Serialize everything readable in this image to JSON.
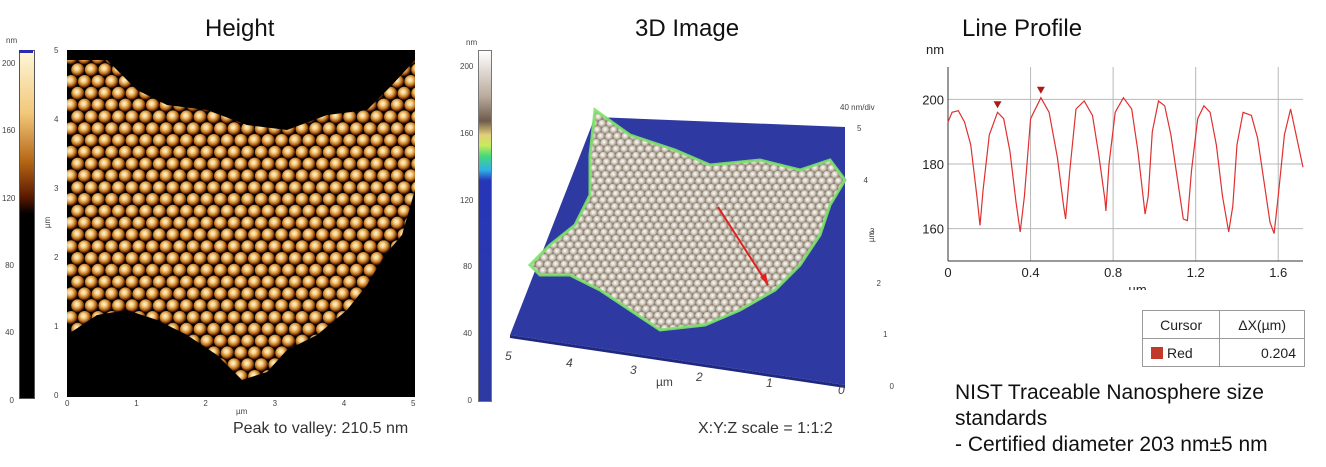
{
  "panels": {
    "height": {
      "title": "Height",
      "colorbar_unit": "nm",
      "colorbar_ticks": [
        "200",
        "160",
        "120",
        "80",
        "40",
        "0"
      ],
      "y_axis_label": "µm",
      "y_ticks": [
        "5",
        "4",
        "3",
        "2",
        "1",
        "0"
      ],
      "x_ticks": [
        "0",
        "1",
        "2",
        "3",
        "4",
        "5"
      ],
      "x_axis_label": "µm",
      "caption": "Peak to valley: 210.5 nm",
      "colors": {
        "low": "#000000",
        "mid": "#7a2c00",
        "high": "#fff1c9"
      }
    },
    "image3d": {
      "title": "3D Image",
      "colorbar_unit": "nm",
      "colorbar_ticks": [
        "200",
        "160",
        "120",
        "80",
        "40",
        "0"
      ],
      "z_scale_label": "40 nm/div",
      "y_axis_label": "µm",
      "y_ticks": [
        "5",
        "4",
        "3",
        "2",
        "1",
        "0"
      ],
      "x_axis_label": "µm",
      "x_ticks": [
        "5",
        "4",
        "3",
        "2",
        "1",
        "0"
      ],
      "caption": "X:Y:Z scale = 1:1:2",
      "colors": {
        "substrate": "#2e3aa2",
        "sphere": "#c9bfb3",
        "edge": "#7ee36a",
        "marker": "#e02020"
      }
    },
    "line_profile": {
      "title": "Line Profile",
      "cursor_table": {
        "headers": [
          "Cursor",
          "ΔX(µm)"
        ],
        "rows": [
          {
            "name": "Red",
            "value": "0.204",
            "color": "#c0392b"
          }
        ]
      }
    }
  },
  "chart_data": {
    "type": "line",
    "title": "Line Profile",
    "xlabel": "µm",
    "ylabel": "nm",
    "xlim": [
      0,
      1.72
    ],
    "ylim": [
      150,
      210
    ],
    "x_ticks": [
      0,
      0.4,
      0.8,
      1.2,
      1.6
    ],
    "y_ticks": [
      160,
      180,
      200
    ],
    "grid": true,
    "line_color": "#e03030",
    "series": [
      {
        "x": [
          0,
          0.02,
          0.05,
          0.08,
          0.11,
          0.14,
          0.155,
          0.17,
          0.2,
          0.24,
          0.27,
          0.3,
          0.33,
          0.35,
          0.37,
          0.4,
          0.45,
          0.49,
          0.53,
          0.56,
          0.57,
          0.59,
          0.62,
          0.66,
          0.7,
          0.73,
          0.76,
          0.765,
          0.78,
          0.81,
          0.85,
          0.89,
          0.92,
          0.955,
          0.97,
          0.99,
          1.02,
          1.05,
          1.08,
          1.11,
          1.14,
          1.16,
          1.18,
          1.21,
          1.24,
          1.27,
          1.3,
          1.33,
          1.36,
          1.38,
          1.4,
          1.43,
          1.47,
          1.5,
          1.53,
          1.56,
          1.58,
          1.6,
          1.63,
          1.66,
          1.69,
          1.72
        ],
        "y": [
          193,
          196,
          196.5,
          193,
          186,
          170,
          161,
          172,
          189,
          196,
          194,
          184,
          168,
          159,
          170,
          194,
          200.5,
          196,
          182,
          167,
          163,
          178,
          197,
          199.5,
          195,
          183,
          169,
          165.5,
          180,
          196,
          200.5,
          197,
          184,
          164.5,
          170,
          190,
          199.5,
          198,
          189,
          176,
          163,
          162.5,
          178,
          194,
          198,
          196,
          186,
          170,
          159,
          167,
          186,
          196,
          195,
          188,
          175,
          162,
          158.5,
          170,
          189,
          197,
          188,
          179
        ]
      }
    ],
    "markers": [
      {
        "x": 0.24,
        "y": 196
      },
      {
        "x": 0.45,
        "y": 200.5
      }
    ]
  },
  "notes": {
    "line1": "NIST Traceable Nanosphere size",
    "line2": "standards",
    "line3": "- Certified diameter 203 nm±5 nm"
  }
}
